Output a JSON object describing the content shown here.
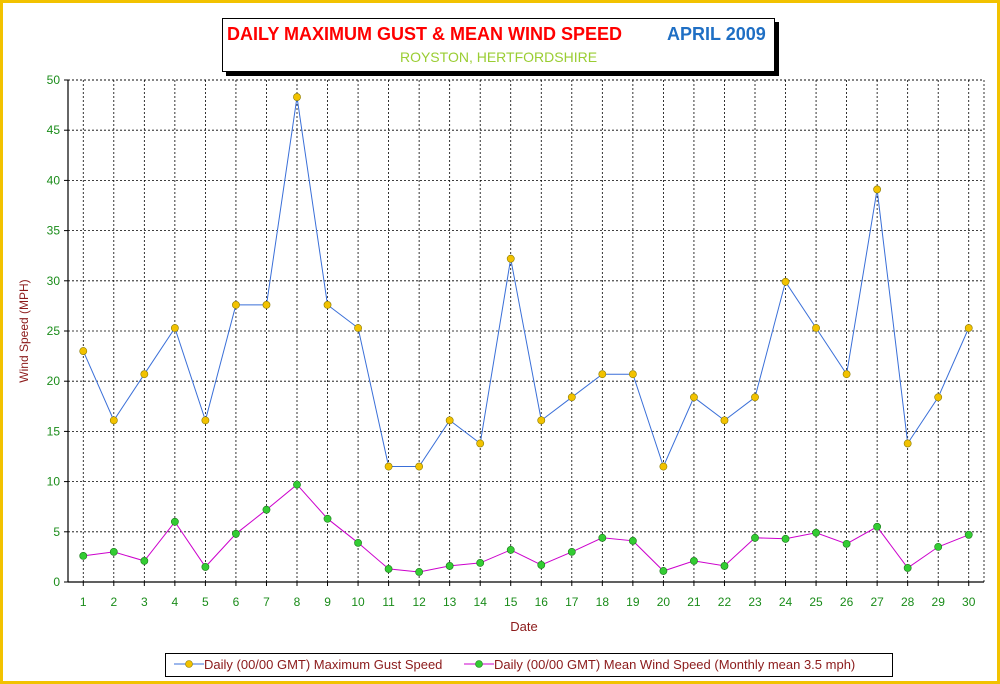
{
  "title": {
    "main": "DAILY MAXIMUM GUST & MEAN WIND SPEED",
    "month": "APRIL",
    "year": "2009",
    "subtitle": "ROYSTON, HERTFORDSHIRE"
  },
  "colors": {
    "title": "#ff0000",
    "month": "#1f6fc4",
    "subtitle": "#9acd32",
    "gust_line": "#3a6fd8",
    "mean_line": "#cc00cc",
    "gust_marker": "#f2c200",
    "mean_marker": "#33cc33",
    "axis_text": "#1a8c1a",
    "axis_title": "#8b1a1a",
    "frame": "#f2c200"
  },
  "chart_data": {
    "type": "line",
    "xlabel": "Date",
    "ylabel": "Wind Speed (MPH)",
    "ylim": [
      0,
      50
    ],
    "yticks": [
      0,
      5,
      10,
      15,
      20,
      25,
      30,
      35,
      40,
      45,
      50
    ],
    "grid": true,
    "legend_position": "bottom",
    "x": [
      1,
      2,
      3,
      4,
      5,
      6,
      7,
      8,
      9,
      10,
      11,
      12,
      13,
      14,
      15,
      16,
      17,
      18,
      19,
      20,
      21,
      22,
      23,
      24,
      25,
      26,
      27,
      28,
      29,
      30
    ],
    "series": [
      {
        "name": "Daily (00/00 GMT) Maximum Gust Speed",
        "values": [
          23.0,
          16.1,
          20.7,
          25.3,
          16.1,
          27.6,
          27.6,
          48.3,
          27.6,
          25.3,
          11.5,
          11.5,
          16.1,
          13.8,
          32.2,
          16.1,
          18.4,
          20.7,
          20.7,
          11.5,
          18.4,
          16.1,
          18.4,
          29.9,
          25.3,
          20.7,
          39.1,
          13.8,
          18.4,
          25.3
        ]
      },
      {
        "name": "Daily (00/00 GMT) Mean Wind Speed (Monthly mean 3.5 mph)",
        "values": [
          2.6,
          3.0,
          2.1,
          6.0,
          1.5,
          4.8,
          7.2,
          9.7,
          6.3,
          3.9,
          1.3,
          1.0,
          1.6,
          1.9,
          3.2,
          1.7,
          3.0,
          4.4,
          4.1,
          1.1,
          2.1,
          1.6,
          4.4,
          4.3,
          4.9,
          3.8,
          5.5,
          1.4,
          3.5,
          4.7
        ]
      }
    ]
  }
}
